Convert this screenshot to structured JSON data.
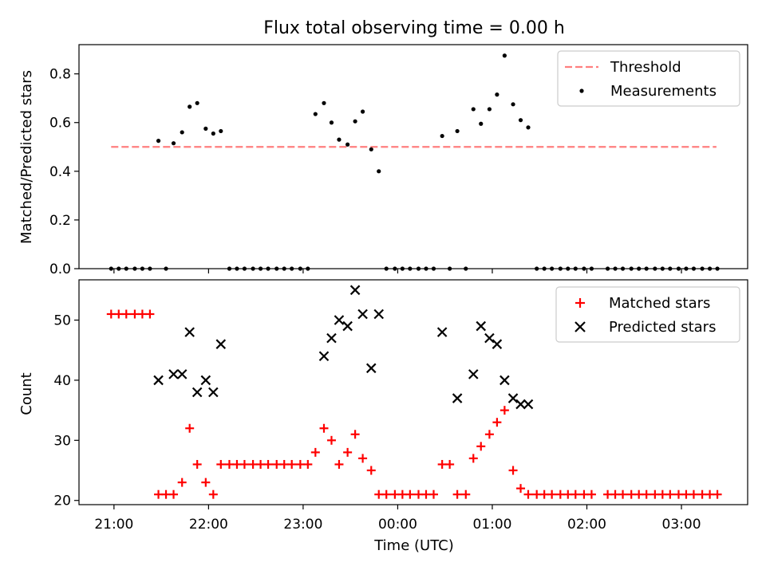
{
  "figure": {
    "title": "Flux total observing time = 0.00 h"
  },
  "chart_data": [
    {
      "type": "scatter",
      "ylabel": "Matched/Predicted stars",
      "xlabel": "",
      "ylim": [
        0,
        0.92
      ],
      "yticks": [
        "0.0",
        "0.2",
        "0.4",
        "0.6",
        "0.8"
      ],
      "ytick_values": [
        0,
        0.2,
        0.4,
        0.6,
        0.8
      ],
      "xlim_hours": [
        20.63,
        27.7
      ],
      "xtick_hours": [
        21,
        22,
        23,
        24,
        25,
        26,
        27
      ],
      "grid": false,
      "legend": {
        "position": "top-right",
        "entries": [
          "Threshold",
          "Measurements"
        ]
      },
      "threshold": {
        "name": "Threshold",
        "value": 0.5,
        "x_range_hours": [
          20.97,
          27.37
        ],
        "color": "#ff7f7f"
      },
      "series": [
        {
          "name": "Measurements",
          "color": "#000000",
          "x_hours": [
            20.97,
            21.05,
            21.13,
            21.22,
            21.3,
            21.38,
            21.47,
            21.55,
            21.63,
            21.72,
            21.8,
            21.88,
            21.97,
            22.05,
            22.13,
            22.22,
            22.3,
            22.38,
            22.47,
            22.55,
            22.63,
            22.72,
            22.8,
            22.88,
            22.97,
            23.05,
            23.13,
            23.22,
            23.3,
            23.38,
            23.47,
            23.55,
            23.63,
            23.72,
            23.8,
            23.88,
            23.97,
            24.05,
            24.13,
            24.22,
            24.3,
            24.38,
            24.47,
            24.55,
            24.63,
            24.72,
            24.8,
            24.88,
            24.97,
            25.05,
            25.13,
            25.22,
            25.3,
            25.38,
            25.47,
            25.55,
            25.63,
            25.72,
            25.8,
            25.88,
            25.97,
            26.05,
            26.22,
            26.3,
            26.38,
            26.47,
            26.55,
            26.63,
            26.72,
            26.8,
            26.88,
            26.97,
            27.05,
            27.13,
            27.22,
            27.3,
            27.38
          ],
          "y": [
            0,
            0,
            0,
            0,
            0,
            0,
            0.525,
            0,
            0.515,
            0.56,
            0.665,
            0.68,
            0.575,
            0.555,
            0.565,
            0,
            0,
            0,
            0,
            0,
            0,
            0,
            0,
            0,
            0,
            0,
            0.635,
            0.68,
            0.6,
            0.53,
            0.51,
            0.605,
            0.645,
            0.49,
            0.4,
            0,
            0,
            0,
            0,
            0,
            0,
            0,
            0.545,
            0,
            0.565,
            0,
            0.655,
            0.595,
            0.655,
            0.715,
            0.875,
            0.675,
            0.61,
            0.58,
            0,
            0,
            0,
            0,
            0,
            0,
            0,
            0,
            0,
            0,
            0,
            0,
            0,
            0,
            0,
            0,
            0,
            0,
            0,
            0,
            0,
            0,
            0
          ]
        }
      ]
    },
    {
      "type": "scatter",
      "ylabel": "Count",
      "xlabel": "Time (UTC)",
      "ylim": [
        19.3,
        56.7
      ],
      "yticks": [
        "20",
        "30",
        "40",
        "50"
      ],
      "ytick_values": [
        20,
        30,
        40,
        50
      ],
      "xlim_hours": [
        20.63,
        27.7
      ],
      "xticks": [
        "21:00",
        "22:00",
        "23:00",
        "00:00",
        "01:00",
        "02:00",
        "03:00"
      ],
      "xtick_hours": [
        21,
        22,
        23,
        24,
        25,
        26,
        27
      ],
      "grid": false,
      "legend": {
        "position": "top-right",
        "entries": [
          "Matched stars",
          "Predicted stars"
        ]
      },
      "series": [
        {
          "name": "Matched stars",
          "marker": "plus",
          "color": "#ff0000",
          "x_hours": [
            20.97,
            21.05,
            21.13,
            21.22,
            21.3,
            21.38,
            21.47,
            21.55,
            21.63,
            21.72,
            21.8,
            21.88,
            21.97,
            22.05,
            22.13,
            22.22,
            22.3,
            22.38,
            22.47,
            22.55,
            22.63,
            22.72,
            22.8,
            22.88,
            22.97,
            23.05,
            23.13,
            23.22,
            23.3,
            23.38,
            23.47,
            23.55,
            23.63,
            23.72,
            23.8,
            23.88,
            23.97,
            24.05,
            24.13,
            24.22,
            24.3,
            24.38,
            24.47,
            24.55,
            24.63,
            24.72,
            24.8,
            24.88,
            24.97,
            25.05,
            25.13,
            25.22,
            25.3,
            25.38,
            25.47,
            25.55,
            25.63,
            25.72,
            25.8,
            25.88,
            25.97,
            26.05,
            26.22,
            26.3,
            26.38,
            26.47,
            26.55,
            26.63,
            26.72,
            26.8,
            26.88,
            26.97,
            27.05,
            27.13,
            27.22,
            27.3,
            27.38
          ],
          "y": [
            51,
            51,
            51,
            51,
            51,
            51,
            21,
            21,
            21,
            23,
            32,
            26,
            23,
            21,
            26,
            26,
            26,
            26,
            26,
            26,
            26,
            26,
            26,
            26,
            26,
            26,
            28,
            32,
            30,
            26,
            28,
            31,
            27,
            25,
            21,
            21,
            21,
            21,
            21,
            21,
            21,
            21,
            26,
            26,
            21,
            21,
            27,
            29,
            31,
            33,
            35,
            25,
            22,
            21,
            21,
            21,
            21,
            21,
            21,
            21,
            21,
            21,
            21,
            21,
            21,
            21,
            21,
            21,
            21,
            21,
            21,
            21,
            21,
            21,
            21,
            21,
            21
          ]
        },
        {
          "name": "Predicted stars",
          "marker": "x",
          "color": "#000000",
          "x_hours": [
            21.47,
            21.63,
            21.72,
            21.8,
            21.88,
            21.97,
            22.05,
            22.13,
            23.22,
            23.3,
            23.38,
            23.47,
            23.55,
            23.63,
            23.72,
            23.8,
            24.47,
            24.63,
            24.8,
            24.88,
            24.97,
            25.05,
            25.13,
            25.22,
            25.3,
            25.38
          ],
          "y": [
            40,
            41,
            41,
            48,
            38,
            40,
            38,
            46,
            44,
            47,
            50,
            49,
            55,
            51,
            42,
            51,
            48,
            37,
            41,
            49,
            47,
            46,
            40,
            37,
            36,
            36
          ]
        }
      ]
    }
  ]
}
